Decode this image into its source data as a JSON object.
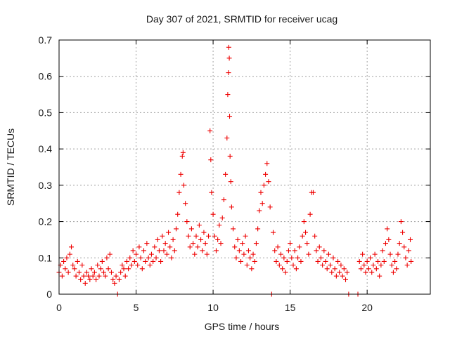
{
  "chart_data": {
    "type": "scatter",
    "title": "Day 307 of 2021, SRMTID for receiver ucag",
    "xlabel": "GPS time / hours",
    "ylabel": "SRMTID / TECUs",
    "xlim": [
      0,
      24.1
    ],
    "ylim": [
      0,
      0.7
    ],
    "xticks": [
      0,
      5,
      10,
      15,
      20
    ],
    "xtick_labels": [
      "0",
      "5",
      "10",
      "15",
      "20"
    ],
    "yticks": [
      0,
      0.1,
      0.2,
      0.3,
      0.4,
      0.5,
      0.6,
      0.7
    ],
    "ytick_labels": [
      "0",
      "0.1",
      "0.2",
      "0.3",
      "0.4",
      "0.5",
      "0.6",
      "0.7"
    ],
    "grid": true,
    "marker": "plus",
    "series": [
      {
        "name": "SRMTID",
        "color": "#ee0000",
        "points": [
          [
            0.0,
            0.06
          ],
          [
            0.1,
            0.08
          ],
          [
            0.2,
            0.05
          ],
          [
            0.3,
            0.09
          ],
          [
            0.4,
            0.07
          ],
          [
            0.5,
            0.1
          ],
          [
            0.6,
            0.06
          ],
          [
            0.7,
            0.11
          ],
          [
            0.8,
            0.13
          ],
          [
            0.9,
            0.08
          ],
          [
            1.0,
            0.07
          ],
          [
            1.1,
            0.05
          ],
          [
            1.2,
            0.09
          ],
          [
            1.3,
            0.06
          ],
          [
            1.4,
            0.04
          ],
          [
            1.5,
            0.08
          ],
          [
            1.6,
            0.05
          ],
          [
            1.7,
            0.03
          ],
          [
            1.8,
            0.06
          ],
          [
            1.9,
            0.05
          ],
          [
            2.0,
            0.04
          ],
          [
            2.1,
            0.07
          ],
          [
            2.2,
            0.05
          ],
          [
            2.3,
            0.06
          ],
          [
            2.4,
            0.04
          ],
          [
            2.5,
            0.08
          ],
          [
            2.6,
            0.05
          ],
          [
            2.7,
            0.07
          ],
          [
            2.8,
            0.09
          ],
          [
            2.9,
            0.06
          ],
          [
            3.0,
            0.05
          ],
          [
            3.1,
            0.1
          ],
          [
            3.2,
            0.07
          ],
          [
            3.3,
            0.11
          ],
          [
            3.4,
            0.06
          ],
          [
            3.5,
            0.04
          ],
          [
            3.6,
            0.03
          ],
          [
            3.7,
            0.05
          ],
          [
            3.8,
            0.0
          ],
          [
            3.9,
            0.04
          ],
          [
            4.0,
            0.06
          ],
          [
            4.1,
            0.08
          ],
          [
            4.2,
            0.07
          ],
          [
            4.3,
            0.05
          ],
          [
            4.4,
            0.09
          ],
          [
            4.5,
            0.07
          ],
          [
            4.6,
            0.1
          ],
          [
            4.7,
            0.08
          ],
          [
            4.8,
            0.12
          ],
          [
            4.9,
            0.09
          ],
          [
            5.0,
            0.11
          ],
          [
            5.1,
            0.08
          ],
          [
            5.2,
            0.13
          ],
          [
            5.3,
            0.1
          ],
          [
            5.4,
            0.07
          ],
          [
            5.5,
            0.12
          ],
          [
            5.6,
            0.09
          ],
          [
            5.7,
            0.14
          ],
          [
            5.8,
            0.1
          ],
          [
            5.9,
            0.08
          ],
          [
            6.0,
            0.11
          ],
          [
            6.1,
            0.09
          ],
          [
            6.2,
            0.13
          ],
          [
            6.3,
            0.1
          ],
          [
            6.4,
            0.15
          ],
          [
            6.5,
            0.12
          ],
          [
            6.6,
            0.09
          ],
          [
            6.7,
            0.16
          ],
          [
            6.8,
            0.12
          ],
          [
            6.9,
            0.14
          ],
          [
            7.0,
            0.11
          ],
          [
            7.1,
            0.17
          ],
          [
            7.2,
            0.13
          ],
          [
            7.3,
            0.1
          ],
          [
            7.4,
            0.15
          ],
          [
            7.5,
            0.12
          ],
          [
            7.6,
            0.18
          ],
          [
            7.7,
            0.22
          ],
          [
            7.8,
            0.28
          ],
          [
            7.9,
            0.33
          ],
          [
            8.0,
            0.38
          ],
          [
            8.05,
            0.39
          ],
          [
            8.1,
            0.3
          ],
          [
            8.2,
            0.25
          ],
          [
            8.3,
            0.2
          ],
          [
            8.4,
            0.16
          ],
          [
            8.5,
            0.13
          ],
          [
            8.6,
            0.18
          ],
          [
            8.7,
            0.14
          ],
          [
            8.8,
            0.11
          ],
          [
            8.9,
            0.16
          ],
          [
            9.0,
            0.13
          ],
          [
            9.1,
            0.19
          ],
          [
            9.2,
            0.15
          ],
          [
            9.3,
            0.12
          ],
          [
            9.4,
            0.17
          ],
          [
            9.5,
            0.14
          ],
          [
            9.6,
            0.11
          ],
          [
            9.7,
            0.16
          ],
          [
            9.8,
            0.45
          ],
          [
            9.85,
            0.37
          ],
          [
            9.9,
            0.28
          ],
          [
            10.0,
            0.22
          ],
          [
            10.1,
            0.16
          ],
          [
            10.2,
            0.12
          ],
          [
            10.3,
            0.15
          ],
          [
            10.4,
            0.19
          ],
          [
            10.5,
            0.14
          ],
          [
            10.6,
            0.21
          ],
          [
            10.7,
            0.26
          ],
          [
            10.8,
            0.33
          ],
          [
            10.9,
            0.43
          ],
          [
            10.95,
            0.55
          ],
          [
            11.0,
            0.61
          ],
          [
            11.02,
            0.68
          ],
          [
            11.05,
            0.65
          ],
          [
            11.07,
            0.49
          ],
          [
            11.1,
            0.38
          ],
          [
            11.15,
            0.31
          ],
          [
            11.2,
            0.24
          ],
          [
            11.3,
            0.18
          ],
          [
            11.4,
            0.13
          ],
          [
            11.5,
            0.1
          ],
          [
            11.6,
            0.15
          ],
          [
            11.7,
            0.12
          ],
          [
            11.8,
            0.09
          ],
          [
            11.9,
            0.14
          ],
          [
            12.0,
            0.11
          ],
          [
            12.1,
            0.16
          ],
          [
            12.2,
            0.08
          ],
          [
            12.3,
            0.12
          ],
          [
            12.4,
            0.1
          ],
          [
            12.5,
            0.07
          ],
          [
            12.6,
            0.11
          ],
          [
            12.7,
            0.09
          ],
          [
            12.8,
            0.14
          ],
          [
            12.9,
            0.18
          ],
          [
            13.0,
            0.23
          ],
          [
            13.1,
            0.28
          ],
          [
            13.2,
            0.25
          ],
          [
            13.3,
            0.3
          ],
          [
            13.4,
            0.33
          ],
          [
            13.5,
            0.36
          ],
          [
            13.6,
            0.31
          ],
          [
            13.7,
            0.24
          ],
          [
            13.8,
            0.0
          ],
          [
            13.9,
            0.17
          ],
          [
            14.0,
            0.12
          ],
          [
            14.1,
            0.09
          ],
          [
            14.2,
            0.13
          ],
          [
            14.3,
            0.08
          ],
          [
            14.4,
            0.11
          ],
          [
            14.5,
            0.07
          ],
          [
            14.6,
            0.1
          ],
          [
            14.7,
            0.06
          ],
          [
            14.8,
            0.09
          ],
          [
            14.9,
            0.12
          ],
          [
            15.0,
            0.14
          ],
          [
            15.1,
            0.1
          ],
          [
            15.2,
            0.08
          ],
          [
            15.3,
            0.12
          ],
          [
            15.4,
            0.07
          ],
          [
            15.5,
            0.1
          ],
          [
            15.6,
            0.13
          ],
          [
            15.7,
            0.09
          ],
          [
            15.8,
            0.16
          ],
          [
            15.9,
            0.2
          ],
          [
            16.0,
            0.17
          ],
          [
            16.1,
            0.14
          ],
          [
            16.2,
            0.11
          ],
          [
            16.3,
            0.22
          ],
          [
            16.4,
            0.28
          ],
          [
            16.5,
            0.28
          ],
          [
            16.6,
            0.16
          ],
          [
            16.7,
            0.12
          ],
          [
            16.8,
            0.09
          ],
          [
            16.9,
            0.13
          ],
          [
            17.0,
            0.1
          ],
          [
            17.1,
            0.08
          ],
          [
            17.2,
            0.12
          ],
          [
            17.3,
            0.09
          ],
          [
            17.4,
            0.07
          ],
          [
            17.5,
            0.11
          ],
          [
            17.6,
            0.08
          ],
          [
            17.7,
            0.06
          ],
          [
            17.8,
            0.1
          ],
          [
            17.9,
            0.07
          ],
          [
            18.0,
            0.05
          ],
          [
            18.1,
            0.09
          ],
          [
            18.2,
            0.06
          ],
          [
            18.3,
            0.08
          ],
          [
            18.4,
            0.05
          ],
          [
            18.5,
            0.07
          ],
          [
            18.6,
            0.04
          ],
          [
            18.7,
            0.06
          ],
          [
            18.8,
            0.0
          ],
          [
            19.4,
            0.0
          ],
          [
            19.5,
            0.09
          ],
          [
            19.6,
            0.07
          ],
          [
            19.7,
            0.11
          ],
          [
            19.8,
            0.08
          ],
          [
            19.9,
            0.06
          ],
          [
            20.0,
            0.09
          ],
          [
            20.1,
            0.07
          ],
          [
            20.2,
            0.1
          ],
          [
            20.3,
            0.06
          ],
          [
            20.4,
            0.08
          ],
          [
            20.5,
            0.11
          ],
          [
            20.6,
            0.07
          ],
          [
            20.7,
            0.09
          ],
          [
            20.8,
            0.05
          ],
          [
            20.9,
            0.08
          ],
          [
            21.0,
            0.12
          ],
          [
            21.1,
            0.09
          ],
          [
            21.2,
            0.14
          ],
          [
            21.3,
            0.18
          ],
          [
            21.4,
            0.15
          ],
          [
            21.5,
            0.11
          ],
          [
            21.6,
            0.08
          ],
          [
            21.7,
            0.06
          ],
          [
            21.8,
            0.09
          ],
          [
            21.9,
            0.07
          ],
          [
            22.0,
            0.11
          ],
          [
            22.1,
            0.14
          ],
          [
            22.2,
            0.2
          ],
          [
            22.3,
            0.17
          ],
          [
            22.4,
            0.13
          ],
          [
            22.5,
            0.1
          ],
          [
            22.6,
            0.08
          ],
          [
            22.7,
            0.12
          ],
          [
            22.8,
            0.15
          ],
          [
            22.85,
            0.09
          ]
        ]
      }
    ]
  }
}
